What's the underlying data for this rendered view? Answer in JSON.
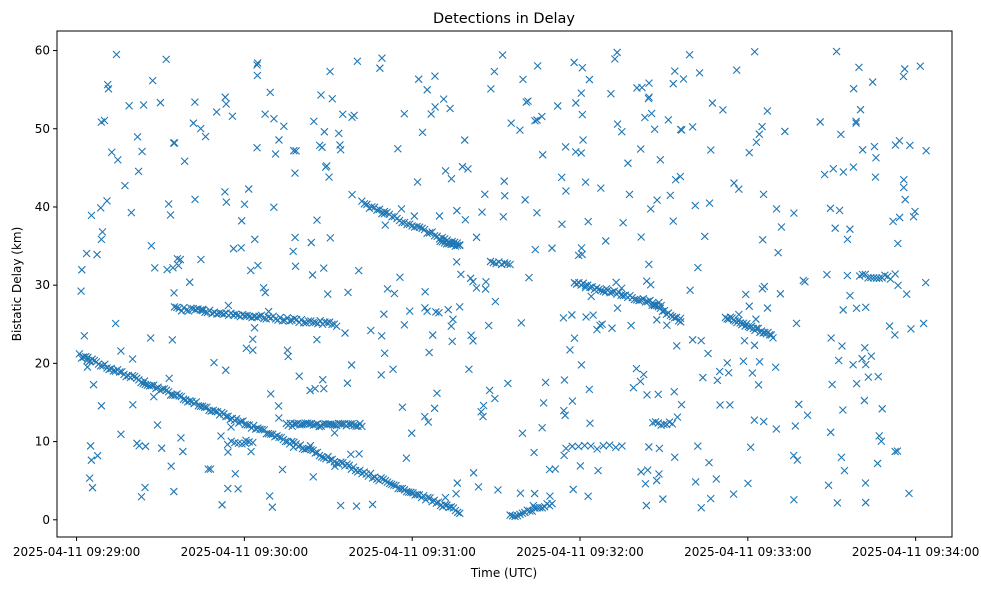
{
  "chart_data": {
    "type": "scatter",
    "title": "Detections in Delay",
    "xlabel": "Time (UTC)",
    "ylabel": "Bistatic Delay (km)",
    "marker": "x",
    "color": "#1f77b4",
    "grid": false,
    "x_ticks": [
      "2025-04-11 09:29:00",
      "2025-04-11 09:30:00",
      "2025-04-11 09:31:00",
      "2025-04-11 09:32:00",
      "2025-04-11 09:33:00",
      "2025-04-11 09:34:00"
    ],
    "y_ticks": [
      "0",
      "10",
      "20",
      "30",
      "40",
      "50",
      "60"
    ],
    "xlim": [
      "2025-04-11 09:28:53",
      "2025-04-11 09:34:13"
    ],
    "ylim": [
      -2.2,
      62.5
    ],
    "tracks": [
      {
        "start": "2025-04-11 09:29:01",
        "end": "2025-04-11 09:31:17",
        "y_start": 21.0,
        "y_end": 1.0,
        "n": 180
      },
      {
        "start": "2025-04-11 09:29:35",
        "end": "2025-04-11 09:30:33",
        "y_start": 27.0,
        "y_end": 25.0,
        "n": 70
      },
      {
        "start": "2025-04-11 09:30:15",
        "end": "2025-04-11 09:30:42",
        "y_start": 12.2,
        "y_end": 12.1,
        "n": 40
      },
      {
        "start": "2025-04-11 09:30:42",
        "end": "2025-04-11 09:31:17",
        "y_start": 40.5,
        "y_end": 35.0,
        "n": 40
      },
      {
        "start": "2025-04-11 09:31:10",
        "end": "2025-04-11 09:31:17",
        "y_start": 35.5,
        "y_end": 35.0,
        "n": 10
      },
      {
        "start": "2025-04-11 09:31:28",
        "end": "2025-04-11 09:31:35",
        "y_start": 33.0,
        "y_end": 32.5,
        "n": 8
      },
      {
        "start": "2025-04-11 09:31:35",
        "end": "2025-04-11 09:31:50",
        "y_start": 0.5,
        "y_end": 2.0,
        "n": 18
      },
      {
        "start": "2025-04-11 09:31:58",
        "end": "2025-04-11 09:32:29",
        "y_start": 30.3,
        "y_end": 27.5,
        "n": 40
      },
      {
        "start": "2025-04-11 09:32:28",
        "end": "2025-04-11 09:32:36",
        "y_start": 27.0,
        "y_end": 25.5,
        "n": 12
      },
      {
        "start": "2025-04-11 09:32:52",
        "end": "2025-04-11 09:33:09",
        "y_start": 26.0,
        "y_end": 23.5,
        "n": 30
      },
      {
        "start": "2025-04-11 09:33:40",
        "end": "2025-04-11 09:33:51",
        "y_start": 31.2,
        "y_end": 31.0,
        "n": 12
      },
      {
        "start": "2025-04-11 09:31:55",
        "end": "2025-04-11 09:32:15",
        "y_start": 9.3,
        "y_end": 9.3,
        "n": 10
      },
      {
        "start": "2025-04-11 09:32:26",
        "end": "2025-04-11 09:32:33",
        "y_start": 12.3,
        "y_end": 12.3,
        "n": 8
      },
      {
        "start": "2025-04-11 09:29:54",
        "end": "2025-04-11 09:30:03",
        "y_start": 9.8,
        "y_end": 9.8,
        "n": 8
      }
    ],
    "background": {
      "start": "2025-04-11 09:29:01",
      "end": "2025-04-11 09:34:05",
      "y_range": [
        1.5,
        60.0
      ],
      "n": 560
    }
  }
}
